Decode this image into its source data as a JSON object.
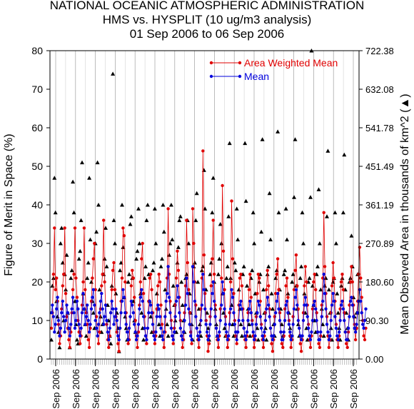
{
  "header": {
    "line1": "NATIONAL OCEANIC ATMOSPHERIC ADMINISTRATION",
    "line2": "HMS vs. HYSPLIT (10 ug/m3 analysis)",
    "line3": "01 Sep 2006 to 06 Sep 2006"
  },
  "colors": {
    "awm": "#e00000",
    "mean": "#0000dd",
    "area": "#000000",
    "grid": "#a0a0a0"
  },
  "chart_data": {
    "type": "scatter",
    "title": "HMS vs. HYSPLIT (10 ug/m3 analysis)",
    "ylabel": "Figure of Merit in Space (%)",
    "y2label": "Mean Observed Area in thousands of km^2 (▲)",
    "ylim": [
      0,
      80
    ],
    "y2lim": [
      0,
      722.38
    ],
    "yticks": [
      "0",
      "10",
      "20",
      "30",
      "40",
      "50",
      "60",
      "70",
      "80"
    ],
    "y2ticks": [
      "0.00",
      "90.30",
      "180.60",
      "270.89",
      "361.19",
      "451.49",
      "541.78",
      "632.08",
      "722.38"
    ],
    "xtick_label": "Sep 2006",
    "xtick_count": 16,
    "legend": {
      "placement": "top-right",
      "entries": [
        "Area Weighted Mean",
        "Mean"
      ]
    },
    "n_points": 300,
    "series": [
      {
        "name": "Area Weighted Mean",
        "marker": "dot-line",
        "values": [
          8,
          12,
          22,
          34,
          18,
          21,
          15,
          9,
          4,
          6,
          13,
          19,
          22,
          34,
          17,
          11,
          8,
          5,
          3,
          7,
          12,
          18,
          22,
          34,
          21,
          16,
          10,
          7,
          4,
          6,
          14,
          20,
          34,
          18,
          12,
          9,
          5,
          3,
          8,
          15,
          21,
          26,
          30,
          18,
          11,
          6,
          4,
          7,
          13,
          19,
          22,
          36,
          20,
          14,
          9,
          5,
          3,
          6,
          12,
          18,
          23,
          25,
          18,
          11,
          7,
          4,
          2,
          8,
          15,
          21,
          34,
          32,
          20,
          12,
          7,
          4,
          5,
          11,
          19,
          23,
          21,
          16,
          10,
          6,
          3,
          7,
          14,
          20,
          26,
          30,
          17,
          11,
          6,
          4,
          8,
          15,
          21,
          22,
          18,
          12,
          7,
          4,
          6,
          13,
          19,
          22,
          20,
          14,
          9,
          5,
          3,
          7,
          15,
          21,
          39,
          22,
          15,
          10,
          6,
          4,
          8,
          14,
          21,
          28,
          23,
          16,
          10,
          6,
          3,
          5,
          12,
          19,
          36,
          25,
          18,
          12,
          7,
          4,
          39,
          30,
          20,
          14,
          8,
          5,
          3,
          7,
          13,
          21,
          54,
          27,
          17,
          10,
          6,
          2,
          4,
          11,
          19,
          26,
          36,
          22,
          14,
          8,
          5,
          3,
          6,
          13,
          21,
          45,
          28,
          18,
          11,
          6,
          3,
          5,
          12,
          20,
          41,
          26,
          17,
          10,
          6,
          4,
          7,
          14,
          21,
          22,
          19,
          13,
          8,
          5,
          3,
          6,
          12,
          18,
          22,
          16,
          10,
          6,
          3,
          5,
          11,
          17,
          22,
          21,
          15,
          9,
          5,
          3,
          6,
          12,
          18,
          23,
          19,
          13,
          8,
          4,
          2,
          5,
          11,
          17,
          22,
          26,
          18,
          12,
          7,
          4,
          3,
          6,
          13,
          19,
          21,
          16,
          10,
          6,
          3,
          5,
          11,
          18,
          23,
          27,
          19,
          13,
          8,
          4,
          2,
          5,
          12,
          19,
          24,
          20,
          14,
          9,
          5,
          3,
          6,
          13,
          20,
          22,
          18,
          12,
          7,
          4,
          3,
          6,
          14,
          21,
          38,
          24,
          17,
          11,
          6,
          3,
          5,
          12,
          19,
          25,
          21,
          15,
          9,
          5,
          3,
          6,
          13,
          20,
          22,
          18,
          12,
          7,
          4,
          3,
          7,
          14,
          20,
          24,
          20,
          14,
          9,
          5,
          8,
          15,
          22,
          29,
          21,
          16,
          10,
          6,
          5,
          8
        ],
        "note_values": "y in percent"
      },
      {
        "name": "Mean",
        "marker": "dot-line",
        "values": [
          12,
          14,
          11,
          7,
          9,
          13,
          16,
          10,
          6,
          8,
          12,
          15,
          11,
          7,
          10,
          14,
          12,
          8,
          6,
          9,
          13,
          16,
          12,
          8,
          10,
          15,
          13,
          9,
          6,
          8,
          12,
          17,
          13,
          9,
          11,
          14,
          10,
          7,
          9,
          13,
          16,
          18,
          14,
          10,
          8,
          6,
          9,
          12,
          15,
          17,
          13,
          9,
          11,
          14,
          10,
          7,
          5,
          8,
          12,
          15,
          13,
          9,
          11,
          13,
          10,
          6,
          5,
          8,
          12,
          15,
          18,
          16,
          12,
          9,
          7,
          5,
          8,
          11,
          15,
          14,
          12,
          9,
          7,
          5,
          6,
          9,
          13,
          16,
          18,
          15,
          11,
          8,
          6,
          5,
          8,
          12,
          15,
          14,
          12,
          9,
          6,
          5,
          7,
          11,
          14,
          13,
          11,
          8,
          6,
          5,
          7,
          11,
          15,
          17,
          24,
          16,
          12,
          8,
          6,
          5,
          7,
          11,
          15,
          19,
          16,
          12,
          8,
          6,
          5,
          7,
          10,
          14,
          21,
          17,
          13,
          9,
          6,
          5,
          24,
          20,
          15,
          11,
          8,
          6,
          5,
          7,
          10,
          14,
          22,
          18,
          13,
          9,
          7,
          5,
          6,
          9,
          13,
          17,
          20,
          15,
          11,
          8,
          6,
          5,
          7,
          10,
          14,
          20,
          17,
          13,
          9,
          7,
          5,
          6,
          9,
          13,
          18,
          16,
          12,
          9,
          7,
          5,
          7,
          10,
          14,
          15,
          13,
          10,
          8,
          6,
          5,
          7,
          10,
          13,
          15,
          12,
          9,
          7,
          5,
          6,
          9,
          12,
          15,
          14,
          11,
          8,
          6,
          5,
          7,
          10,
          13,
          16,
          14,
          11,
          8,
          6,
          5,
          6,
          9,
          12,
          15,
          17,
          13,
          10,
          7,
          5,
          5,
          7,
          10,
          14,
          15,
          12,
          9,
          7,
          5,
          6,
          9,
          13,
          16,
          18,
          14,
          10,
          8,
          6,
          5,
          6,
          10,
          14,
          16,
          14,
          11,
          8,
          6,
          5,
          7,
          10,
          14,
          15,
          13,
          10,
          7,
          5,
          5,
          7,
          11,
          15,
          22,
          17,
          13,
          9,
          7,
          5,
          6,
          10,
          14,
          17,
          15,
          11,
          8,
          6,
          5,
          7,
          10,
          14,
          15,
          13,
          10,
          7,
          5,
          5,
          8,
          11,
          15,
          16,
          14,
          11,
          8,
          7,
          9,
          12,
          15,
          18,
          15,
          12,
          9,
          8,
          10,
          13
        ]
      },
      {
        "name": "Mean Observed Area",
        "marker": "triangle",
        "axis": "right",
        "values": [
          5,
          19,
          21,
          47,
          38,
          15,
          11,
          7,
          3,
          30,
          34,
          25,
          10,
          22,
          18,
          27,
          12,
          8,
          3,
          21,
          23,
          46,
          38,
          15,
          9,
          5,
          4,
          26,
          28,
          36,
          51,
          17,
          13,
          9,
          6,
          21,
          25,
          47,
          31,
          20,
          15,
          12,
          8,
          30,
          33,
          51,
          40,
          18,
          11,
          7,
          9,
          22,
          26,
          34,
          24,
          14,
          10,
          6,
          4,
          19,
          74,
          36,
          30,
          17,
          12,
          8,
          2,
          23,
          25,
          40,
          29,
          16,
          11,
          8,
          5,
          20,
          22,
          35,
          37,
          21,
          15,
          10,
          7,
          26,
          28,
          39,
          30,
          17,
          12,
          8,
          5,
          21,
          24,
          36,
          40,
          22,
          15,
          11,
          7,
          23,
          25,
          39,
          30,
          17,
          13,
          9,
          6,
          24,
          26,
          40,
          33,
          18,
          13,
          9,
          6,
          27,
          30,
          40,
          31,
          19,
          14,
          10,
          7,
          25,
          29,
          36,
          37,
          20,
          14,
          10,
          7,
          21,
          22,
          36,
          30,
          17,
          12,
          9,
          5,
          24,
          25,
          36,
          43,
          20,
          13,
          9,
          6,
          23,
          24,
          49,
          39,
          18,
          12,
          8,
          5,
          22,
          25,
          38,
          47,
          20,
          13,
          9,
          6,
          22,
          26,
          35,
          30,
          17,
          12,
          8,
          6,
          21,
          24,
          37,
          56,
          21,
          14,
          9,
          6,
          25,
          23,
          39,
          31,
          18,
          13,
          9,
          6,
          22,
          24,
          56,
          41,
          19,
          13,
          9,
          6,
          21,
          23,
          38,
          30,
          17,
          12,
          8,
          5,
          20,
          22,
          33,
          57,
          18,
          12,
          8,
          5,
          22,
          24,
          43,
          31,
          17,
          13,
          9,
          6,
          21,
          23,
          59,
          38,
          18,
          13,
          9,
          6,
          22,
          23,
          39,
          31,
          17,
          12,
          8,
          6,
          20,
          22,
          42,
          57,
          19,
          13,
          9,
          6,
          21,
          24,
          38,
          30,
          17,
          12,
          8,
          5,
          20,
          21,
          42,
          80,
          19,
          14,
          10,
          7,
          22,
          24,
          44,
          30,
          18,
          13,
          9,
          6,
          19,
          21,
          37,
          54,
          18,
          12,
          8,
          5,
          20,
          21,
          38,
          30,
          17,
          12,
          8,
          5,
          19,
          21,
          38,
          53,
          18,
          12,
          8,
          5,
          20,
          21,
          32,
          24,
          16,
          11,
          8,
          12,
          22
        ]
      }
    ]
  }
}
